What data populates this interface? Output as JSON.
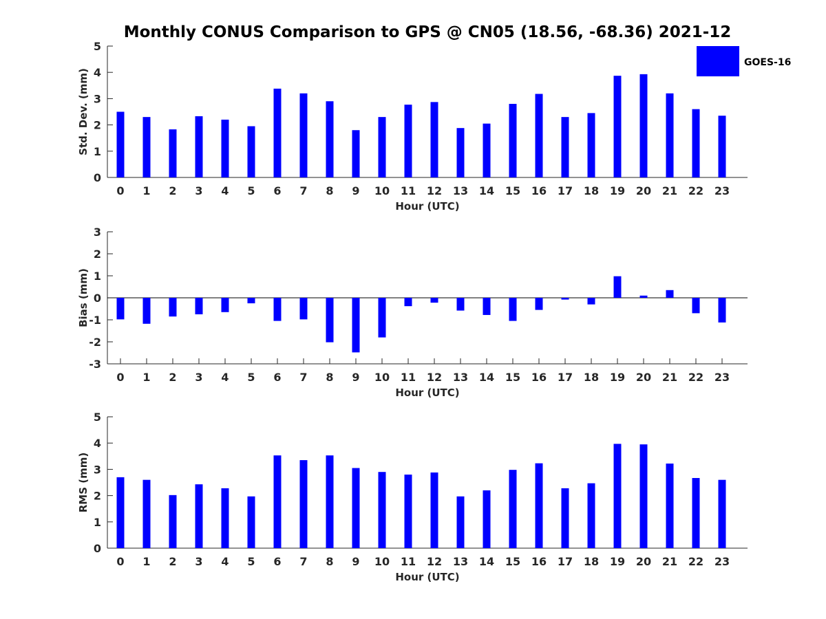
{
  "chart_data": {
    "title": "Monthly CONUS Comparison to GPS @ CN05 (18.56, -68.36) 2021-12",
    "legend": {
      "label": "GOES-16",
      "color": "#0000FF",
      "position": "top-right"
    },
    "panels": [
      {
        "type": "bar",
        "ylabel": "Std. Dev. (mm)",
        "xlabel": "Hour (UTC)",
        "ylim": [
          0,
          5
        ],
        "yticks": [
          "0",
          "1",
          "2",
          "3",
          "4",
          "5"
        ],
        "categories": [
          "0",
          "1",
          "2",
          "3",
          "4",
          "5",
          "6",
          "7",
          "8",
          "9",
          "10",
          "11",
          "12",
          "13",
          "14",
          "15",
          "16",
          "17",
          "18",
          "19",
          "20",
          "21",
          "22",
          "23"
        ],
        "series": [
          {
            "name": "GOES-16",
            "values": [
              2.5,
              2.3,
              1.83,
              2.33,
              2.2,
              1.95,
              3.38,
              3.2,
              2.9,
              1.8,
              2.3,
              2.77,
              2.87,
              1.88,
              2.05,
              2.8,
              3.18,
              2.3,
              2.45,
              3.87,
              3.93,
              3.2,
              2.6,
              2.35
            ]
          }
        ]
      },
      {
        "type": "bar",
        "ylabel": "Bias (mm)",
        "xlabel": "Hour (UTC)",
        "ylim": [
          -3,
          3
        ],
        "yticks": [
          "-3",
          "-2",
          "-1",
          "0",
          "1",
          "2",
          "3"
        ],
        "categories": [
          "0",
          "1",
          "2",
          "3",
          "4",
          "5",
          "6",
          "7",
          "8",
          "9",
          "10",
          "11",
          "12",
          "13",
          "14",
          "15",
          "16",
          "17",
          "18",
          "19",
          "20",
          "21",
          "22",
          "23"
        ],
        "series": [
          {
            "name": "GOES-16",
            "values": [
              -0.98,
              -1.18,
              -0.85,
              -0.75,
              -0.65,
              -0.25,
              -1.05,
              -0.98,
              -2.02,
              -2.48,
              -1.8,
              -0.38,
              -0.22,
              -0.58,
              -0.78,
              -1.05,
              -0.55,
              -0.08,
              -0.3,
              0.98,
              0.1,
              0.35,
              -0.7,
              -1.12
            ]
          }
        ]
      },
      {
        "type": "bar",
        "ylabel": "RMS (mm)",
        "xlabel": "Hour (UTC)",
        "ylim": [
          0,
          5
        ],
        "yticks": [
          "0",
          "1",
          "2",
          "3",
          "4",
          "5"
        ],
        "categories": [
          "0",
          "1",
          "2",
          "3",
          "4",
          "5",
          "6",
          "7",
          "8",
          "9",
          "10",
          "11",
          "12",
          "13",
          "14",
          "15",
          "16",
          "17",
          "18",
          "19",
          "20",
          "21",
          "22",
          "23"
        ],
        "series": [
          {
            "name": "GOES-16",
            "values": [
              2.7,
              2.6,
              2.02,
              2.43,
              2.28,
              1.97,
              3.53,
              3.35,
              3.53,
              3.05,
              2.9,
              2.8,
              2.88,
              1.97,
              2.2,
              2.98,
              3.23,
              2.28,
              2.47,
              3.97,
              3.95,
              3.22,
              2.67,
              2.6
            ]
          }
        ]
      }
    ]
  }
}
